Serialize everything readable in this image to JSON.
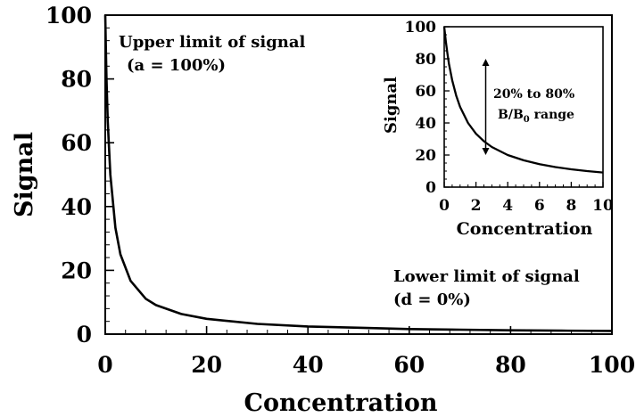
{
  "chart_data": [
    {
      "type": "line",
      "title": "",
      "xlabel": "Concentration",
      "ylabel": "Signal",
      "xlim": [
        0,
        100
      ],
      "ylim": [
        0,
        100
      ],
      "xticks": [
        0,
        20,
        40,
        60,
        80,
        100
      ],
      "yticks": [
        0,
        20,
        40,
        60,
        80,
        100
      ],
      "grid": false,
      "series": [
        {
          "x": [
            0,
            0.1,
            0.25,
            0.5,
            1,
            2,
            3,
            5,
            8,
            10,
            15,
            20,
            30,
            40,
            50,
            60,
            70,
            80,
            90,
            100
          ],
          "y": [
            100,
            90.9,
            80,
            66.7,
            50,
            33.3,
            25,
            16.7,
            11.1,
            9.1,
            6.3,
            4.8,
            3.2,
            2.4,
            2.0,
            1.6,
            1.4,
            1.2,
            1.1,
            1.0
          ]
        }
      ],
      "annotations": [
        {
          "lines": [
            "Upper limit of signal",
            "(a = 100%)"
          ]
        },
        {
          "lines": [
            "Lower limit of signal",
            "(d = 0%)"
          ]
        }
      ]
    },
    {
      "type": "line",
      "title": "",
      "xlabel": "Concentration",
      "ylabel": "Signal",
      "xlim": [
        0,
        10
      ],
      "ylim": [
        0,
        100
      ],
      "xticks": [
        0,
        2,
        4,
        6,
        8,
        10
      ],
      "yticks": [
        0,
        20,
        40,
        60,
        80,
        100
      ],
      "grid": false,
      "series": [
        {
          "x": [
            0,
            0.1,
            0.2,
            0.3,
            0.5,
            0.75,
            1,
            1.5,
            2,
            2.5,
            3,
            4,
            5,
            6,
            7,
            8,
            9,
            10
          ],
          "y": [
            100,
            90.9,
            83.3,
            76.9,
            66.7,
            57.1,
            50,
            40,
            33.3,
            28.6,
            25,
            20,
            16.7,
            14.3,
            12.5,
            11.1,
            10,
            9.1
          ]
        }
      ],
      "range_arrow": {
        "x": 2.5,
        "y_from": 20,
        "y_to": 80
      },
      "annotation": {
        "line1": "20% to 80%",
        "line2_prefix": "B/B",
        "line2_sub": "0",
        "line2_suffix": " range"
      }
    }
  ]
}
